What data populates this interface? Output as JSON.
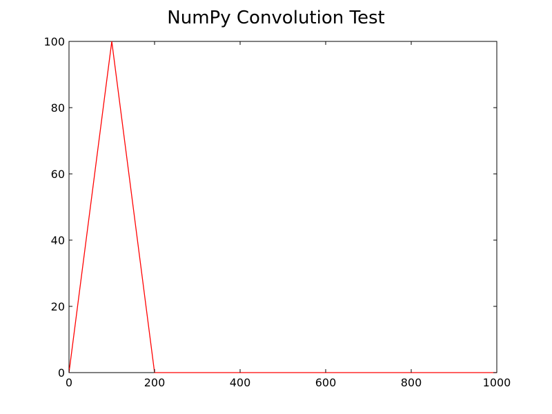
{
  "chart_data": {
    "type": "line",
    "title": "NumPy Convolution Test",
    "xlabel": "",
    "ylabel": "",
    "xlim": [
      0,
      1000
    ],
    "ylim": [
      0,
      100
    ],
    "x_ticks": [
      0,
      200,
      400,
      600,
      800,
      1000
    ],
    "y_ticks": [
      0,
      20,
      40,
      60,
      80,
      100
    ],
    "x_tick_labels": [
      "0",
      "200",
      "400",
      "600",
      "800",
      "1000"
    ],
    "y_tick_labels": [
      "0",
      "20",
      "40",
      "60",
      "80",
      "100"
    ],
    "grid": false,
    "series": [
      {
        "color": "#ff0000",
        "x": [
          0,
          100,
          200,
          1000
        ],
        "y": [
          0,
          100,
          0,
          0
        ]
      }
    ]
  }
}
